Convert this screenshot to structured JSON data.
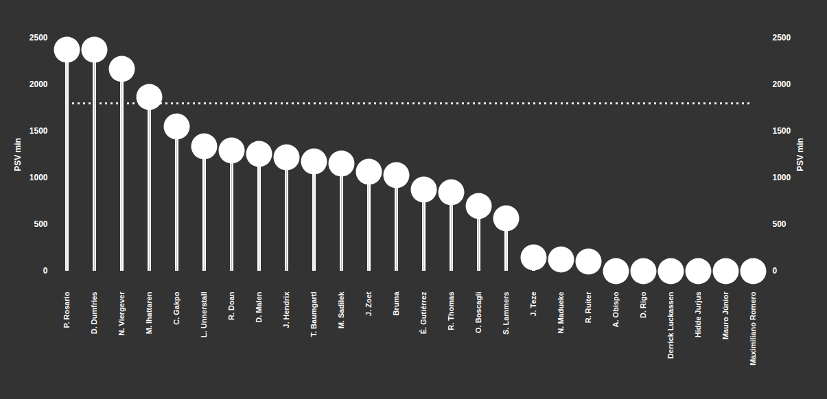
{
  "chart_data": {
    "type": "lollipop",
    "y_label": "PSV min",
    "categories": [
      "P. Rosario",
      "D. Dumfries",
      "N. Viergever",
      "M. Ihattaren",
      "C. Gakpo",
      "L. Unnerstall",
      "R. Doan",
      "D. Malen",
      "J. Hendrix",
      "T. Baumgartl",
      "M. Sadilek",
      "J. Zoet",
      "Bruma",
      "É. Gutiérrez",
      "R. Thomas",
      "O. Boscagli",
      "S. Lammers",
      "J. Teze",
      "N. Madueke",
      "R. Ruiter",
      "A. Obispo",
      "D. Rigo",
      "Derrick Luckassen",
      "Hidde Jurjus",
      "Mauro Júnior",
      "Maximiliano Romero"
    ],
    "values": [
      2375,
      2375,
      2169,
      1868,
      1551,
      1338,
      1294,
      1257,
      1221,
      1176,
      1154,
      1066,
      1029,
      875,
      846,
      699,
      566,
      147,
      125,
      103,
      0,
      0,
      0,
      0,
      0,
      0
    ],
    "color": "#ffffff",
    "threshold": 1800,
    "ylim": [
      0,
      2500
    ],
    "yticks": [
      0,
      500,
      1000,
      1500,
      2000,
      2500
    ],
    "grid": false
  }
}
